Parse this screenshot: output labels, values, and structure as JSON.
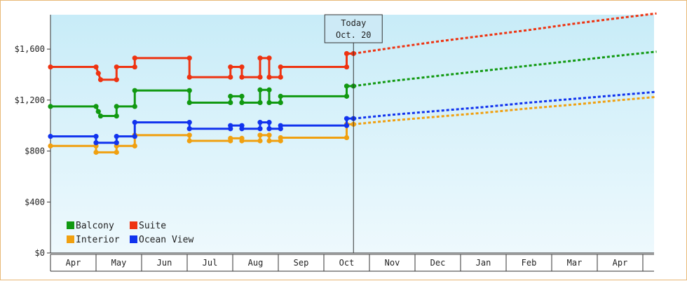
{
  "chart_data": {
    "type": "line",
    "title": "",
    "xlabel": "",
    "ylabel": "",
    "ylim": [
      0,
      1870
    ],
    "y_ticks": [
      0,
      400,
      800,
      1200,
      1600
    ],
    "y_tick_labels": [
      "$0",
      "$400",
      "$800",
      "$1,200",
      "$1,600"
    ],
    "x_axis_months": [
      "Apr",
      "May",
      "Jun",
      "Jul",
      "Aug",
      "Sep",
      "Oct",
      "Nov",
      "Dec",
      "Jan",
      "Feb",
      "Mar",
      "Apr"
    ],
    "x_range_months": [
      0,
      13.3
    ],
    "today_marker": {
      "line1": "Today",
      "line2": "Oct. 20",
      "x_month": 6.65
    },
    "grid": false,
    "legend_placement": "bottom-left",
    "series": [
      {
        "name": "Balcony",
        "color": "#119911",
        "historical": [
          [
            0,
            1150
          ],
          [
            1.0,
            1150
          ],
          [
            1.05,
            1110
          ],
          [
            1.1,
            1075
          ],
          [
            1.45,
            1075
          ],
          [
            1.45,
            1150
          ],
          [
            1.85,
            1150
          ],
          [
            1.85,
            1275
          ],
          [
            3.05,
            1275
          ],
          [
            3.05,
            1180
          ],
          [
            3.95,
            1180
          ],
          [
            3.95,
            1230
          ],
          [
            4.2,
            1230
          ],
          [
            4.2,
            1180
          ],
          [
            4.6,
            1180
          ],
          [
            4.6,
            1280
          ],
          [
            4.8,
            1280
          ],
          [
            4.8,
            1180
          ],
          [
            5.05,
            1180
          ],
          [
            5.05,
            1230
          ],
          [
            6.5,
            1230
          ],
          [
            6.5,
            1310
          ],
          [
            6.65,
            1310
          ]
        ],
        "forecast": [
          [
            6.65,
            1310
          ],
          [
            7.5,
            1350
          ],
          [
            8.5,
            1390
          ],
          [
            9.5,
            1430
          ],
          [
            10.5,
            1470
          ],
          [
            11.5,
            1510
          ],
          [
            12.5,
            1550
          ],
          [
            13.3,
            1580
          ]
        ]
      },
      {
        "name": "Suite",
        "color": "#ee3311",
        "historical": [
          [
            0,
            1460
          ],
          [
            1.0,
            1460
          ],
          [
            1.05,
            1410
          ],
          [
            1.1,
            1360
          ],
          [
            1.45,
            1360
          ],
          [
            1.45,
            1460
          ],
          [
            1.85,
            1460
          ],
          [
            1.85,
            1530
          ],
          [
            3.05,
            1530
          ],
          [
            3.05,
            1380
          ],
          [
            3.95,
            1380
          ],
          [
            3.95,
            1460
          ],
          [
            4.2,
            1460
          ],
          [
            4.2,
            1380
          ],
          [
            4.6,
            1380
          ],
          [
            4.6,
            1530
          ],
          [
            4.8,
            1530
          ],
          [
            4.8,
            1380
          ],
          [
            5.05,
            1380
          ],
          [
            5.05,
            1460
          ],
          [
            6.5,
            1460
          ],
          [
            6.5,
            1565
          ],
          [
            6.65,
            1565
          ]
        ],
        "forecast": [
          [
            6.65,
            1565
          ],
          [
            7.5,
            1610
          ],
          [
            8.5,
            1660
          ],
          [
            9.5,
            1705
          ],
          [
            10.5,
            1750
          ],
          [
            11.5,
            1800
          ],
          [
            12.5,
            1845
          ],
          [
            13.3,
            1880
          ]
        ]
      },
      {
        "name": "Interior",
        "color": "#f0a010",
        "historical": [
          [
            0,
            840
          ],
          [
            1.0,
            840
          ],
          [
            1.0,
            790
          ],
          [
            1.45,
            790
          ],
          [
            1.45,
            840
          ],
          [
            1.85,
            840
          ],
          [
            1.85,
            925
          ],
          [
            3.05,
            925
          ],
          [
            3.05,
            880
          ],
          [
            3.95,
            880
          ],
          [
            3.95,
            900
          ],
          [
            4.2,
            900
          ],
          [
            4.2,
            880
          ],
          [
            4.6,
            880
          ],
          [
            4.6,
            925
          ],
          [
            4.8,
            925
          ],
          [
            4.8,
            880
          ],
          [
            5.05,
            880
          ],
          [
            5.05,
            905
          ],
          [
            6.5,
            905
          ],
          [
            6.5,
            1010
          ],
          [
            6.65,
            1010
          ]
        ],
        "forecast": [
          [
            6.65,
            1010
          ],
          [
            7.5,
            1040
          ],
          [
            8.5,
            1070
          ],
          [
            9.5,
            1100
          ],
          [
            10.5,
            1135
          ],
          [
            11.5,
            1165
          ],
          [
            12.5,
            1200
          ],
          [
            13.3,
            1225
          ]
        ]
      },
      {
        "name": "Ocean View",
        "color": "#1133ee",
        "historical": [
          [
            0,
            915
          ],
          [
            1.0,
            915
          ],
          [
            1.0,
            865
          ],
          [
            1.45,
            865
          ],
          [
            1.45,
            915
          ],
          [
            1.85,
            915
          ],
          [
            1.85,
            1025
          ],
          [
            3.05,
            1025
          ],
          [
            3.05,
            975
          ],
          [
            3.95,
            975
          ],
          [
            3.95,
            1000
          ],
          [
            4.2,
            1000
          ],
          [
            4.2,
            975
          ],
          [
            4.6,
            975
          ],
          [
            4.6,
            1025
          ],
          [
            4.8,
            1025
          ],
          [
            4.8,
            975
          ],
          [
            5.05,
            975
          ],
          [
            5.05,
            1000
          ],
          [
            6.5,
            1000
          ],
          [
            6.5,
            1055
          ],
          [
            6.65,
            1055
          ]
        ],
        "forecast": [
          [
            6.65,
            1055
          ],
          [
            7.5,
            1085
          ],
          [
            8.5,
            1115
          ],
          [
            9.5,
            1145
          ],
          [
            10.5,
            1180
          ],
          [
            11.5,
            1210
          ],
          [
            12.5,
            1240
          ],
          [
            13.3,
            1265
          ]
        ]
      }
    ],
    "legend_order": [
      "Balcony",
      "Suite",
      "Interior",
      "Ocean View"
    ]
  }
}
